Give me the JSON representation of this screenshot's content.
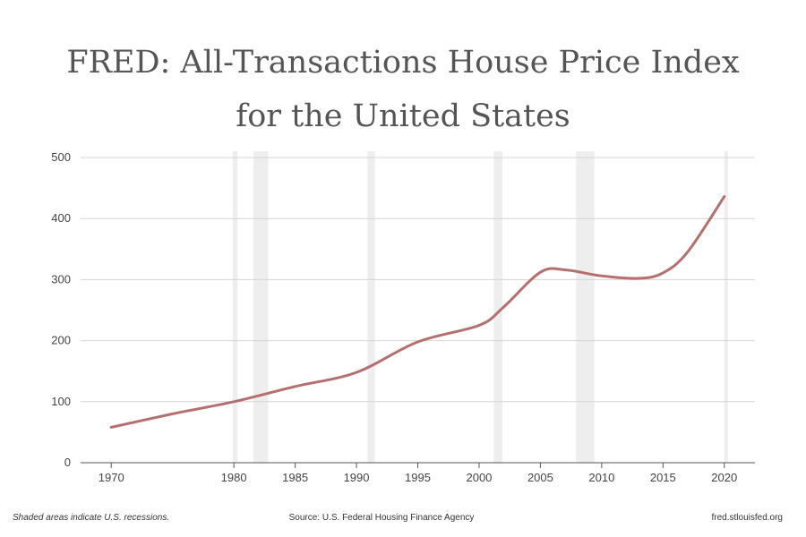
{
  "chart_data": {
    "type": "line",
    "title_line1": "FRED: All-Transactions House Price Index",
    "title_line2": "for the United States",
    "xlabel": "",
    "ylabel": "",
    "xlim": [
      1967.5,
      2022.5
    ],
    "ylim": [
      0,
      500
    ],
    "x_ticks": [
      1970,
      1980,
      1985,
      1990,
      1995,
      2000,
      2005,
      2010,
      2015,
      2020
    ],
    "y_ticks": [
      0,
      100,
      200,
      300,
      400,
      500
    ],
    "grid": true,
    "recessions": [
      [
        1979.9,
        1980.3
      ],
      [
        1981.6,
        1982.8
      ],
      [
        1990.9,
        1991.5
      ],
      [
        2001.2,
        2001.9
      ],
      [
        2007.9,
        2009.4
      ],
      [
        2020.0,
        2020.3
      ]
    ],
    "series": [
      {
        "name": "All-Transactions House Price Index",
        "color": "#b56f6f",
        "x": [
          1970,
          1975,
          1980,
          1985,
          1990,
          1995,
          2000,
          2002,
          2005,
          2007,
          2010,
          2013,
          2015,
          2017,
          2020
        ],
        "values": [
          58,
          80,
          100,
          125,
          148,
          198,
          225,
          255,
          312,
          316,
          306,
          302,
          311,
          345,
          436
        ]
      }
    ]
  },
  "footer": {
    "left": "Shaded areas indicate U.S. recessions.",
    "center": "Source: U.S. Federal Housing Finance Agency",
    "right": "fred.stlouisfed.org"
  }
}
